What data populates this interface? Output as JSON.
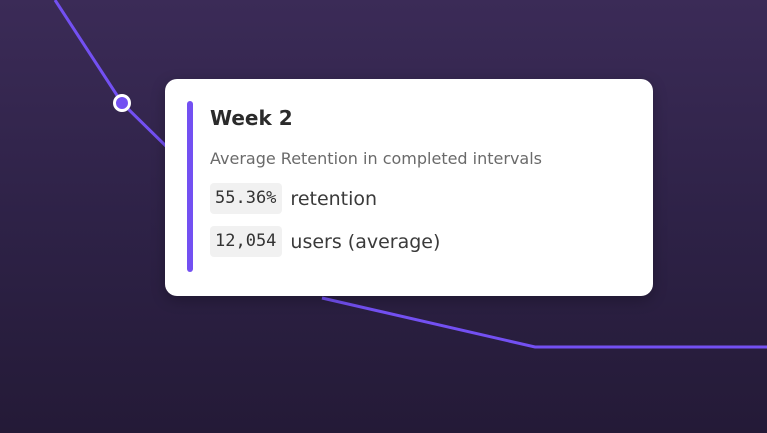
{
  "tooltip": {
    "title": "Week 2",
    "subtitle": "Average Retention in completed intervals",
    "rows": [
      {
        "value": "55.36%",
        "label": "retention"
      },
      {
        "value": "12,054",
        "label": "users (average)"
      }
    ]
  }
}
